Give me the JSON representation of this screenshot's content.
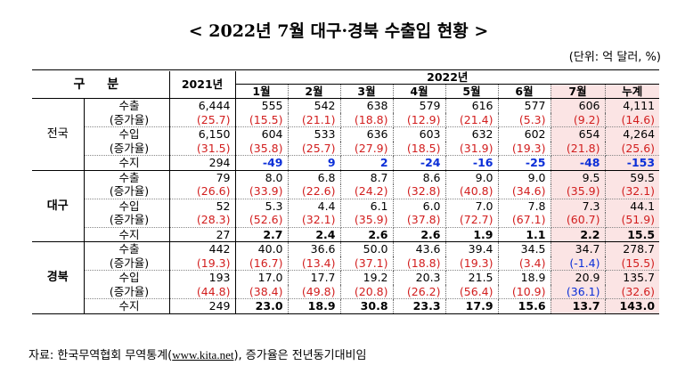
{
  "title": "< 2022년 7월 대구·경북 수출입 현황 >",
  "unit": "(단위: 억 달러, %)",
  "header": {
    "gubun": "구 분",
    "y2021": "2021년",
    "y2022": "2022년",
    "months": [
      "1월",
      "2월",
      "3월",
      "4월",
      "5월",
      "6월",
      "7월",
      "누계"
    ]
  },
  "sections": [
    {
      "region": "전국",
      "rows": [
        {
          "label": "수출",
          "y2021": "6,444",
          "vals": [
            "555",
            "542",
            "638",
            "579",
            "616",
            "577",
            "606",
            "4,111"
          ]
        },
        {
          "label": "(증가율)",
          "y2021": "(25.7)",
          "vals": [
            "(15.5)",
            "(21.1)",
            "(18.8)",
            "(12.9)",
            "(21.4)",
            "(5.3)",
            "(9.2)",
            "(14.6)"
          ]
        },
        {
          "label": "수입",
          "y2021": "6,150",
          "vals": [
            "604",
            "533",
            "636",
            "603",
            "632",
            "602",
            "654",
            "4,264"
          ]
        },
        {
          "label": "(증가율)",
          "y2021": "(31.5)",
          "vals": [
            "(35.8)",
            "(25.7)",
            "(27.9)",
            "(18.5)",
            "(31.9)",
            "(19.3)",
            "(21.8)",
            "(25.6)"
          ]
        },
        {
          "label": "수지",
          "y2021": "294",
          "vals": [
            "-49",
            "9",
            "2",
            "-24",
            "-16",
            "-25",
            "-48",
            "-153"
          ]
        }
      ]
    },
    {
      "region": "대구",
      "rows": [
        {
          "label": "수출",
          "y2021": "79",
          "vals": [
            "8.0",
            "6.8",
            "8.7",
            "8.6",
            "9.0",
            "9.0",
            "9.5",
            "59.5"
          ]
        },
        {
          "label": "(증가율)",
          "y2021": "(26.6)",
          "vals": [
            "(33.9)",
            "(22.6)",
            "(24.2)",
            "(32.8)",
            "(40.8)",
            "(34.6)",
            "(35.9)",
            "(32.1)"
          ]
        },
        {
          "label": "수입",
          "y2021": "52",
          "vals": [
            "5.3",
            "4.4",
            "6.1",
            "6.0",
            "7.0",
            "7.8",
            "7.3",
            "44.1"
          ]
        },
        {
          "label": "(증가율)",
          "y2021": "(28.3)",
          "vals": [
            "(52.6)",
            "(32.1)",
            "(35.9)",
            "(37.8)",
            "(72.7)",
            "(67.1)",
            "(60.7)",
            "(51.9)"
          ]
        },
        {
          "label": "수지",
          "y2021": "27",
          "vals": [
            "2.7",
            "2.4",
            "2.6",
            "2.6",
            "1.9",
            "1.1",
            "2.2",
            "15.5"
          ]
        }
      ]
    },
    {
      "region": "경북",
      "rows": [
        {
          "label": "수출",
          "y2021": "442",
          "vals": [
            "40.0",
            "36.6",
            "50.0",
            "43.6",
            "39.4",
            "34.5",
            "34.7",
            "278.7"
          ]
        },
        {
          "label": "(증가율)",
          "y2021": "(19.3)",
          "vals": [
            "(16.7)",
            "(13.4)",
            "(37.1)",
            "(18.8)",
            "(19.3)",
            "(3.4)",
            "(-1.4)",
            "(15.5)"
          ]
        },
        {
          "label": "수입",
          "y2021": "193",
          "vals": [
            "17.0",
            "17.7",
            "19.2",
            "20.3",
            "21.5",
            "18.9",
            "20.9",
            "135.7"
          ]
        },
        {
          "label": "(증가율)",
          "y2021": "(44.8)",
          "vals": [
            "(38.4)",
            "(49.8)",
            "(20.8)",
            "(26.2)",
            "(56.4)",
            "(10.9)",
            "(36.1)",
            "(32.6)"
          ]
        },
        {
          "label": "수지",
          "y2021": "249",
          "vals": [
            "23.0",
            "18.9",
            "30.8",
            "23.3",
            "17.9",
            "15.6",
            "13.7",
            "143.0"
          ]
        }
      ]
    }
  ],
  "source": {
    "prefix": "자료: 한국무역협회 무역통계(",
    "link": "www.kita.net",
    "suffix": "), 증가율은 전년동기대비임"
  },
  "colors": {
    "rate_text": "#d21e1e",
    "national_balance_text": "#0b2fd8",
    "highlight_background": "#fbe4e4"
  }
}
